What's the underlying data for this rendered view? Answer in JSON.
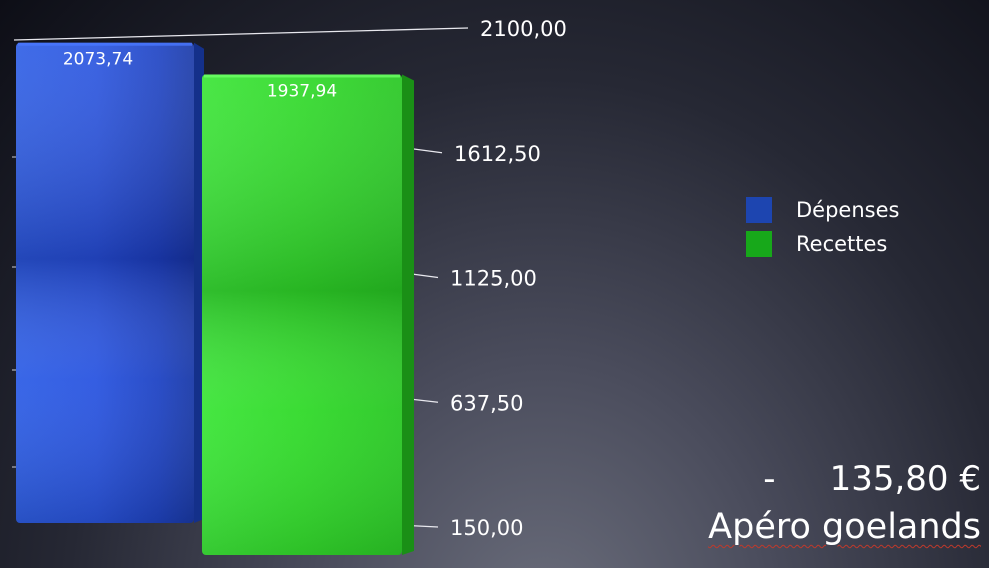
{
  "chart_data": {
    "type": "bar",
    "categories": [
      "Dépenses",
      "Recettes"
    ],
    "values": [
      2073.74,
      1937.94
    ],
    "value_labels": [
      "2073,74",
      "1937,94"
    ],
    "colors": [
      "#1f4fd8",
      "#2fd824"
    ],
    "ylim": [
      150,
      2100
    ],
    "yticks": [
      150,
      637.5,
      1125,
      1612.5,
      2100
    ],
    "ytick_labels": [
      "150,00",
      "637,50",
      "1125,00",
      "1612,50",
      "2100,00"
    ],
    "legend_position": "right",
    "grid": false
  },
  "legend": {
    "items": [
      {
        "label": "Dépenses",
        "color": "#1d45b0"
      },
      {
        "label": "Recettes",
        "color": "#17a81a"
      }
    ]
  },
  "annotation": {
    "amount": "-     135,80 €",
    "title": "Apéro goelands"
  }
}
